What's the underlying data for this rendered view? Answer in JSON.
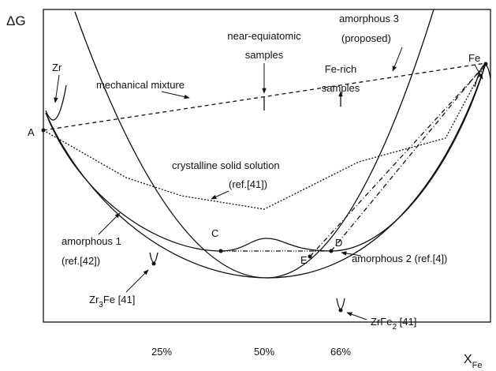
{
  "axis": {
    "y_label": "ΔG",
    "x_label": {
      "main": "X",
      "sub": "Fe"
    },
    "x_marks": [
      "25%",
      "50%",
      "66%"
    ]
  },
  "labels": {
    "amorphous_3": [
      "amorphous 3",
      "(proposed)"
    ],
    "near_equiatomic": [
      "near-equiatomic",
      "samples"
    ],
    "fe_rich": [
      "Fe-rich",
      "samples"
    ],
    "zr": "Zr",
    "fe": "Fe",
    "mechanical_mixture": "mechanical mixture",
    "a": "A",
    "crystalline": [
      "crystalline solid solution",
      "(ref.[41])"
    ],
    "c": "C",
    "d": "D",
    "e": "E",
    "amorphous_1": [
      "amorphous 1",
      "(ref.[42])"
    ],
    "amorphous_2": "amorphous 2 (ref.[4])",
    "zr3fe": {
      "main": "Zr",
      "sub": "3",
      "rest": "Fe [41]"
    },
    "zrfe2": {
      "main": "ZrFe",
      "sub": "2",
      "rest": " [41]"
    }
  }
}
